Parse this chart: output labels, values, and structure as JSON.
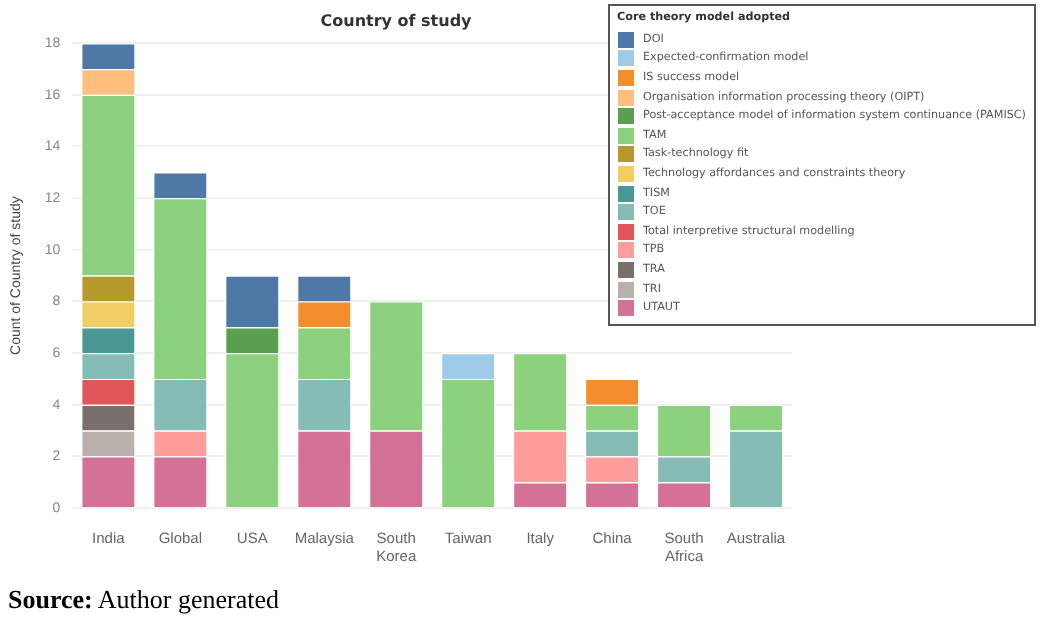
{
  "chart_data": {
    "type": "bar",
    "stacked": true,
    "title": "Country of study",
    "ylabel": "Count of Country of study",
    "legend_title": "Core theory model adopted",
    "legend": "top right",
    "grid": "y",
    "categories": [
      "India",
      "Global",
      "USA",
      "Malaysia",
      "South Korea",
      "Taiwan",
      "Italy",
      "China",
      "South Africa",
      "Australia"
    ],
    "ylim": [
      0,
      18
    ],
    "yticks": [
      0,
      2,
      4,
      6,
      8,
      10,
      12,
      14,
      16,
      18
    ],
    "annotations": [
      "Source: Author generated"
    ],
    "series": [
      {
        "name": "UTAUT",
        "color": "#d37295",
        "values": [
          2,
          2,
          null,
          3,
          3,
          null,
          1,
          1,
          1,
          null
        ]
      },
      {
        "name": "TRI",
        "color": "#bab0ac",
        "values": [
          1,
          null,
          null,
          null,
          null,
          null,
          null,
          null,
          null,
          null
        ]
      },
      {
        "name": "TRA",
        "color": "#79706e",
        "values": [
          1,
          null,
          null,
          null,
          null,
          null,
          null,
          null,
          null,
          null
        ]
      },
      {
        "name": "TPB",
        "color": "#ff9d9a",
        "values": [
          null,
          1,
          null,
          null,
          null,
          null,
          2,
          1,
          null,
          null
        ]
      },
      {
        "name": "Total interpretive structural modelling",
        "color": "#e15759",
        "values": [
          1,
          null,
          null,
          null,
          null,
          null,
          null,
          null,
          null,
          null
        ]
      },
      {
        "name": "TOE",
        "color": "#86bcb6",
        "values": [
          1,
          2,
          null,
          2,
          null,
          null,
          null,
          1,
          1,
          3
        ]
      },
      {
        "name": "TISM",
        "color": "#499894",
        "values": [
          1,
          null,
          null,
          null,
          null,
          null,
          null,
          null,
          null,
          null
        ]
      },
      {
        "name": "Technology affordances and constraints theory",
        "color": "#f1ce63",
        "values": [
          1,
          null,
          null,
          null,
          null,
          null,
          null,
          null,
          null,
          null
        ]
      },
      {
        "name": "Task-technology fit",
        "color": "#b6992d",
        "values": [
          1,
          null,
          null,
          null,
          null,
          null,
          null,
          null,
          null,
          null
        ]
      },
      {
        "name": "TAM",
        "color": "#8cd17d",
        "values": [
          7,
          7,
          6,
          2,
          5,
          5,
          3,
          1,
          2,
          1
        ]
      },
      {
        "name": "Post-acceptance model of information system continuance (PAMISC)",
        "color": "#59a14f",
        "values": [
          null,
          null,
          1,
          null,
          null,
          null,
          null,
          null,
          null,
          null
        ]
      },
      {
        "name": "Organisation information processing theory (OIPT)",
        "color": "#ffbe7d",
        "values": [
          1,
          null,
          null,
          null,
          null,
          null,
          null,
          null,
          null,
          null
        ]
      },
      {
        "name": "IS success model",
        "color": "#f28e2b",
        "values": [
          null,
          null,
          null,
          1,
          null,
          null,
          null,
          1,
          null,
          null
        ]
      },
      {
        "name": "Expected-confirmation model",
        "color": "#a0cbe8",
        "values": [
          null,
          null,
          null,
          null,
          null,
          1,
          null,
          null,
          null,
          null
        ]
      },
      {
        "name": "DOI",
        "color": "#4e79a7",
        "values": [
          1,
          1,
          2,
          1,
          null,
          null,
          null,
          null,
          null,
          null
        ]
      }
    ]
  }
}
